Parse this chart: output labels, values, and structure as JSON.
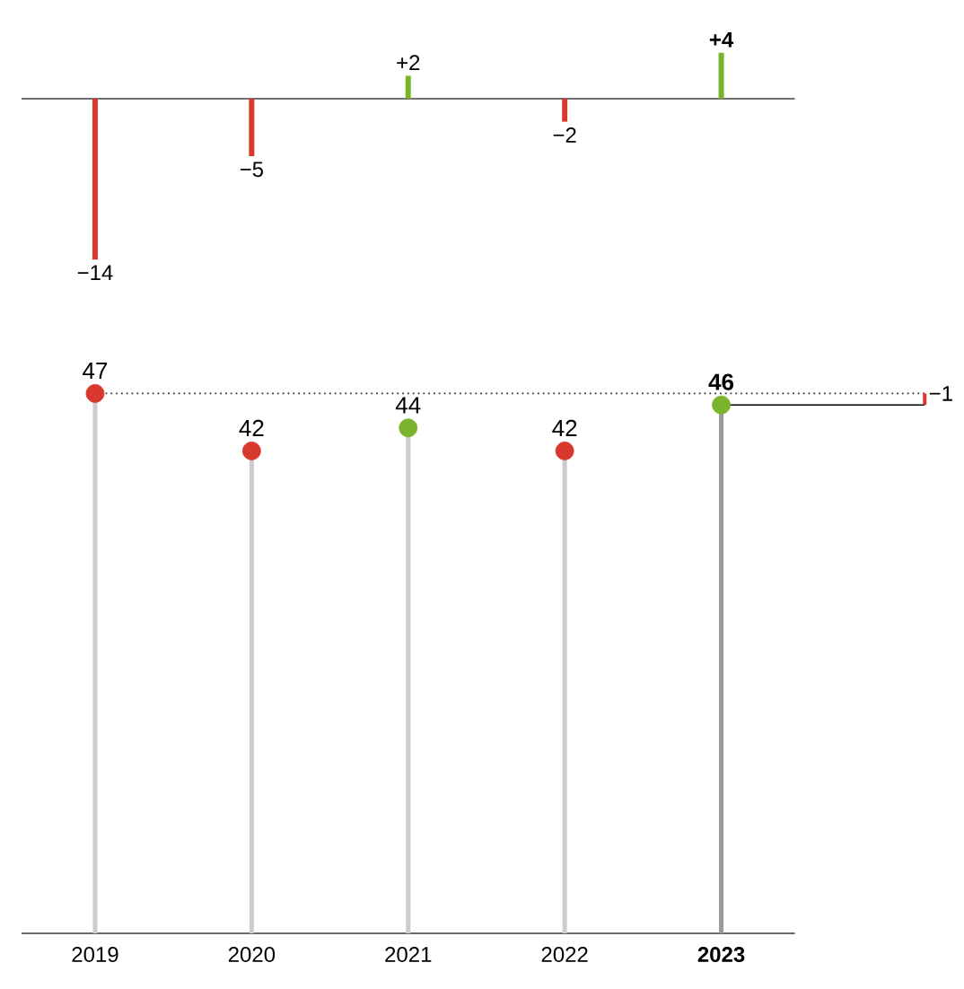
{
  "chart_data": [
    {
      "type": "bar",
      "categories": [
        "2019",
        "2020",
        "2021",
        "2022",
        "2023"
      ],
      "values": [
        -14,
        -5,
        2,
        -2,
        4
      ],
      "colors": [
        "#d9382e",
        "#d9382e",
        "#7cb32c",
        "#d9382e",
        "#7cb32c"
      ],
      "value_labels": [
        "−14",
        "−5",
        "+2",
        "−2",
        "+4"
      ],
      "tick_labels": false
    },
    {
      "type": "lollipop",
      "categories": [
        "2019",
        "2020",
        "2021",
        "2022",
        "2023"
      ],
      "values": [
        47,
        42,
        44,
        42,
        46
      ],
      "colors": [
        "#d9382e",
        "#d9382e",
        "#7cb32c",
        "#d9382e",
        "#7cb32c"
      ],
      "data_labels": true,
      "tick_labels": "x",
      "ref_lines": [
        {
          "axis": "y",
          "value": 47,
          "line_style": "dotted",
          "color": "#333333"
        }
      ],
      "annotations": [
        "−1"
      ]
    }
  ]
}
